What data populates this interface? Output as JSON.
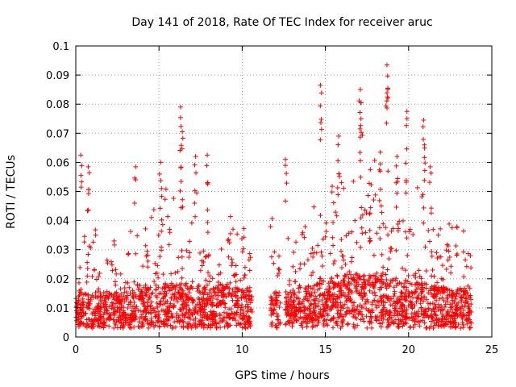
{
  "chart_data": {
    "type": "scatter",
    "title": "Day 141 of 2018, Rate Of TEC Index for receiver aruc",
    "xlabel": "GPS time / hours",
    "ylabel": "ROTI / TECUs",
    "xlim": [
      0,
      25
    ],
    "ylim": [
      0,
      0.1
    ],
    "xticks": [
      "0",
      "5",
      "10",
      "15",
      "20",
      "25"
    ],
    "yticks": [
      "0",
      "0.01",
      "0.02",
      "0.03",
      "0.04",
      "0.05",
      "0.06",
      "0.07",
      "0.08",
      "0.09",
      "0.1"
    ],
    "grid": true,
    "marker": "+",
    "color": "#ff0000",
    "data_gaps_hours": [
      [
        10.6,
        11.7
      ],
      [
        12.3,
        12.6
      ]
    ],
    "notable_points": [
      {
        "x": 0.3,
        "y": 0.0625
      },
      {
        "x": 0.75,
        "y": 0.0585
      },
      {
        "x": 3.6,
        "y": 0.0585
      },
      {
        "x": 5.1,
        "y": 0.06
      },
      {
        "x": 6.3,
        "y": 0.079
      },
      {
        "x": 6.4,
        "y": 0.0705
      },
      {
        "x": 7.2,
        "y": 0.062
      },
      {
        "x": 7.9,
        "y": 0.0625
      },
      {
        "x": 12.6,
        "y": 0.061
      },
      {
        "x": 14.7,
        "y": 0.0865
      },
      {
        "x": 15.8,
        "y": 0.069
      },
      {
        "x": 17.1,
        "y": 0.085
      },
      {
        "x": 17.15,
        "y": 0.0805
      },
      {
        "x": 17.7,
        "y": 0.0575
      },
      {
        "x": 18.3,
        "y": 0.0635
      },
      {
        "x": 18.7,
        "y": 0.0935
      },
      {
        "x": 18.75,
        "y": 0.0855
      },
      {
        "x": 19.3,
        "y": 0.062
      },
      {
        "x": 19.9,
        "y": 0.0775
      },
      {
        "x": 20.9,
        "y": 0.0745
      },
      {
        "x": 20.95,
        "y": 0.066
      },
      {
        "x": 21.3,
        "y": 0.0585
      }
    ],
    "envelope_hourly": [
      {
        "hour": 0,
        "base": 0.01,
        "upper": 0.03
      },
      {
        "hour": 1,
        "base": 0.009,
        "upper": 0.028
      },
      {
        "hour": 2,
        "base": 0.009,
        "upper": 0.027
      },
      {
        "hour": 3,
        "base": 0.01,
        "upper": 0.03
      },
      {
        "hour": 4,
        "base": 0.01,
        "upper": 0.028
      },
      {
        "hour": 5,
        "base": 0.011,
        "upper": 0.04
      },
      {
        "hour": 6,
        "base": 0.011,
        "upper": 0.04
      },
      {
        "hour": 7,
        "base": 0.011,
        "upper": 0.03
      },
      {
        "hour": 8,
        "base": 0.01,
        "upper": 0.028
      },
      {
        "hour": 9,
        "base": 0.011,
        "upper": 0.033
      },
      {
        "hour": 10,
        "base": 0.01,
        "upper": 0.035
      },
      {
        "hour": 11,
        "base": 0.01,
        "upper": 0.032
      },
      {
        "hour": 12,
        "base": 0.009,
        "upper": 0.03
      },
      {
        "hour": 13,
        "base": 0.01,
        "upper": 0.025
      },
      {
        "hour": 14,
        "base": 0.011,
        "upper": 0.03
      },
      {
        "hour": 15,
        "base": 0.012,
        "upper": 0.04
      },
      {
        "hour": 16,
        "base": 0.013,
        "upper": 0.04
      },
      {
        "hour": 17,
        "base": 0.014,
        "upper": 0.045
      },
      {
        "hour": 18,
        "base": 0.014,
        "upper": 0.045
      },
      {
        "hour": 19,
        "base": 0.013,
        "upper": 0.042
      },
      {
        "hour": 20,
        "base": 0.012,
        "upper": 0.04
      },
      {
        "hour": 21,
        "base": 0.011,
        "upper": 0.038
      },
      {
        "hour": 22,
        "base": 0.01,
        "upper": 0.032
      },
      {
        "hour": 23,
        "base": 0.01,
        "upper": 0.03
      }
    ],
    "x_data_range": [
      0,
      23.8
    ]
  }
}
